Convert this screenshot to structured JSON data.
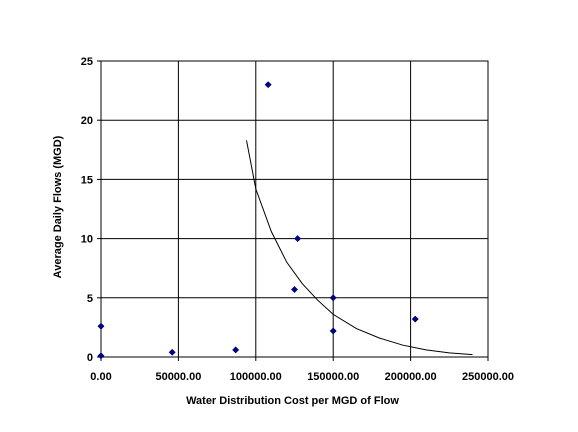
{
  "chart_data": {
    "type": "scatter",
    "title": "",
    "xlabel": "Water Distribution Cost per MGD of Flow",
    "ylabel": "Average Daily Flows (MGD)",
    "xlim": [
      0,
      250000
    ],
    "ylim": [
      0,
      25
    ],
    "x_ticks": [
      0,
      50000,
      100000,
      150000,
      200000,
      250000
    ],
    "x_tick_labels": [
      "0.00",
      "50000.00",
      "100000.00",
      "150000.00",
      "200000.00",
      "250000.00"
    ],
    "y_ticks": [
      0,
      5,
      10,
      15,
      20,
      25
    ],
    "y_tick_labels": [
      "0",
      "5",
      "10",
      "15",
      "20",
      "25"
    ],
    "grid": true,
    "legend": "none",
    "marker_color": "#000080",
    "trendline_color": "#000000",
    "series": [
      {
        "points": [
          {
            "x": 0,
            "y": 2.6
          },
          {
            "x": 0,
            "y": 0.1
          },
          {
            "x": 46000,
            "y": 0.4
          },
          {
            "x": 87000,
            "y": 0.6
          },
          {
            "x": 108000,
            "y": 23.0
          },
          {
            "x": 127000,
            "y": 10.0
          },
          {
            "x": 125000,
            "y": 5.7
          },
          {
            "x": 150000,
            "y": 5.0
          },
          {
            "x": 150000,
            "y": 2.2
          },
          {
            "x": 203000,
            "y": 3.2
          }
        ]
      }
    ],
    "trendline": {
      "points": [
        {
          "x": 94000,
          "y": 18.3
        },
        {
          "x": 100000,
          "y": 14.2
        },
        {
          "x": 110000,
          "y": 10.6
        },
        {
          "x": 120000,
          "y": 8.0
        },
        {
          "x": 130000,
          "y": 6.2
        },
        {
          "x": 140000,
          "y": 4.8
        },
        {
          "x": 150000,
          "y": 3.6
        },
        {
          "x": 165000,
          "y": 2.4
        },
        {
          "x": 180000,
          "y": 1.6
        },
        {
          "x": 195000,
          "y": 1.0
        },
        {
          "x": 210000,
          "y": 0.6
        },
        {
          "x": 225000,
          "y": 0.35
        },
        {
          "x": 240000,
          "y": 0.2
        }
      ]
    }
  }
}
